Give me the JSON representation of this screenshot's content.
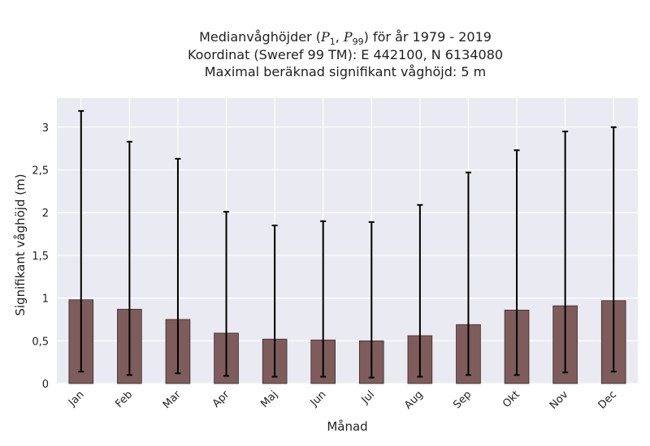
{
  "chart_data": {
    "type": "bar",
    "title_lines": [
      "Medianvåghöjder (P1, P99) för år 1979 - 2019",
      "Koordinat (Sweref 99 TM): E 442100, N 6134080",
      "Maximal beräknad signifikant våghöjd: 5 m"
    ],
    "title_math": {
      "prefix": "Medianvåghöjder (",
      "p": "P",
      "sub1": "1",
      "sep": ", ",
      "sub2": "99",
      "suffix": ") för år 1979 - 2019"
    },
    "xlabel": "Månad",
    "ylabel": "Signifikant våghöjd (m)",
    "categories": [
      "Jan",
      "Feb",
      "Mar",
      "Apr",
      "Maj",
      "Jun",
      "Jul",
      "Aug",
      "Sep",
      "Okt",
      "Nov",
      "Dec"
    ],
    "values": [
      0.98,
      0.87,
      0.75,
      0.59,
      0.52,
      0.51,
      0.5,
      0.56,
      0.69,
      0.86,
      0.91,
      0.97
    ],
    "p1": [
      0.14,
      0.1,
      0.12,
      0.09,
      0.08,
      0.08,
      0.07,
      0.08,
      0.1,
      0.1,
      0.13,
      0.14
    ],
    "p99": [
      3.19,
      2.83,
      2.63,
      2.01,
      1.85,
      1.9,
      1.89,
      2.09,
      2.47,
      2.73,
      2.95,
      3.0
    ],
    "ylim": [
      0,
      3.34
    ],
    "yticks": [
      0,
      0.5,
      1,
      1.5,
      2,
      2.5,
      3
    ],
    "ytick_labels": [
      "0",
      "0,5",
      "1",
      "1,5",
      "2",
      "2,5",
      "3"
    ],
    "grid": true,
    "colors": {
      "bar": "#7e5c5c",
      "bar_edge": "#3a2a2a",
      "error": "#000000",
      "plot_bg": "#eaeaf2",
      "grid": "#ffffff"
    }
  }
}
